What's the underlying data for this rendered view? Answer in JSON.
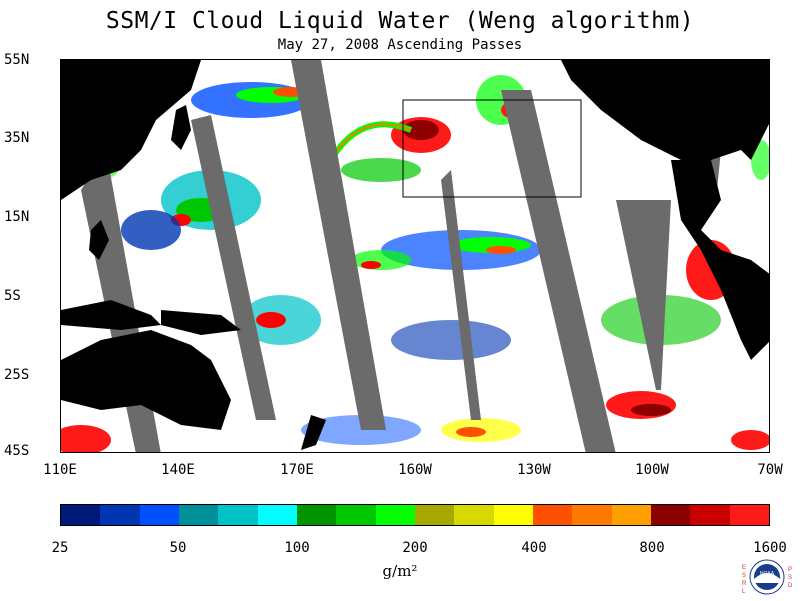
{
  "header": {
    "title": "SSM/I Cloud Liquid Water (Weng algorithm)",
    "subtitle": "May 27, 2008  Ascending Passes"
  },
  "axes": {
    "lat_labels": [
      "55N",
      "35N",
      "15N",
      "5S",
      "25S",
      "45S"
    ],
    "lon_labels": [
      "110E",
      "140E",
      "170E",
      "160W",
      "130W",
      "100W",
      "70W"
    ]
  },
  "colorbar": {
    "colors": [
      "#001a7a",
      "#0036b3",
      "#0050ff",
      "#00909a",
      "#00c3c8",
      "#00fdff",
      "#009400",
      "#00c800",
      "#00ff00",
      "#a7a800",
      "#d6d800",
      "#ffff00",
      "#ff5000",
      "#ff7800",
      "#ffa000",
      "#8c0000",
      "#c80000",
      "#ff1a1a"
    ],
    "labels": [
      "25",
      "50",
      "100",
      "200",
      "400",
      "800",
      "1600"
    ],
    "units": "g/m²"
  },
  "logo": {
    "left_letters": "ESRL",
    "right_letters": "PSD",
    "text": "NOAA"
  },
  "map_colors": {
    "land": "#000000",
    "swath_gap": "#6b6b6b",
    "ocean_clear": "#ffffff",
    "box_outline": "#000000"
  }
}
